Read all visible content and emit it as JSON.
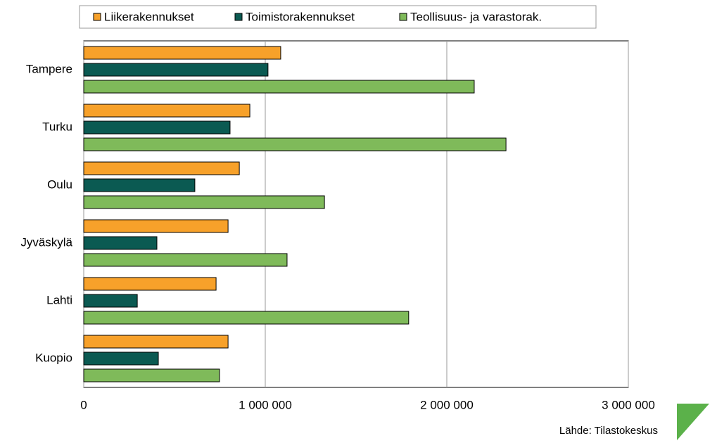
{
  "chart_data": {
    "type": "hbar",
    "categories": [
      "Tampere",
      "Turku",
      "Oulu",
      "Jyväskylä",
      "Lahti",
      "Kuopio"
    ],
    "series": [
      {
        "name": "Liikerakennukset",
        "color": "#f7a12a",
        "values": [
          1085000,
          915000,
          857000,
          795000,
          729000,
          795000
        ]
      },
      {
        "name": "Toimistorakennukset",
        "color": "#0b5a52",
        "values": [
          1015000,
          806000,
          612000,
          403000,
          295000,
          411000
        ]
      },
      {
        "name": "Teollisuus- ja varastorak.",
        "color": "#7fba5a",
        "values": [
          2151000,
          2326000,
          1326000,
          1120000,
          1790000,
          748000
        ]
      }
    ],
    "xlim": [
      0,
      3000000
    ],
    "xticks": [
      0,
      {
        "value": 1000000,
        "label": "1 000 000"
      },
      {
        "value": 2000000,
        "label": "2 000 000"
      },
      {
        "value": 3000000,
        "label": "3 000 000"
      }
    ],
    "grid": true,
    "legend": "top",
    "source": "Lähde: Tilastokeskus"
  }
}
